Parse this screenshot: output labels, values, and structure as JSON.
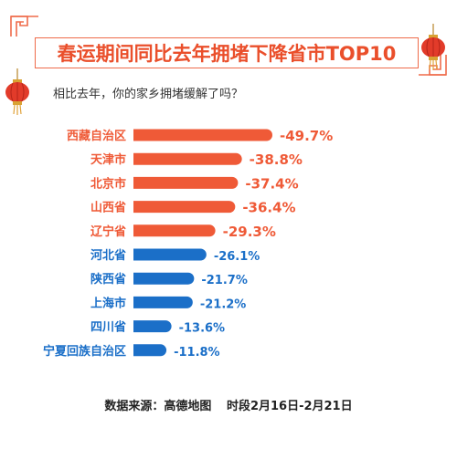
{
  "title": "春运期间同比去年拥堵下降省市TOP10",
  "subtitle": "相比去年，你的家乡拥堵缓解了吗？",
  "source": {
    "label": "数据来源：高德地图",
    "period": "时段2月16日-2月21日"
  },
  "colors": {
    "accent": "#ef6b4a",
    "top5": "#ef5a37",
    "rest": "#1b6fc8",
    "lantern": "#e23b2a"
  },
  "chart_data": {
    "type": "bar",
    "orientation": "horizontal",
    "categories": [
      "西藏自治区",
      "天津市",
      "北京市",
      "山西省",
      "辽宁省",
      "河北省",
      "陕西省",
      "上海市",
      "四川省",
      "宁夏回族自治区"
    ],
    "values": [
      -49.7,
      -38.8,
      -37.4,
      -36.4,
      -29.3,
      -26.1,
      -21.7,
      -21.2,
      -13.6,
      -11.8
    ],
    "labels": [
      "-49.7%",
      "-38.8%",
      "-37.4%",
      "-36.4%",
      "-29.3%",
      "-26.1%",
      "-21.7%",
      "-21.2%",
      "-13.6%",
      "-11.8%"
    ],
    "unit": "%",
    "highlight_count": 5
  }
}
